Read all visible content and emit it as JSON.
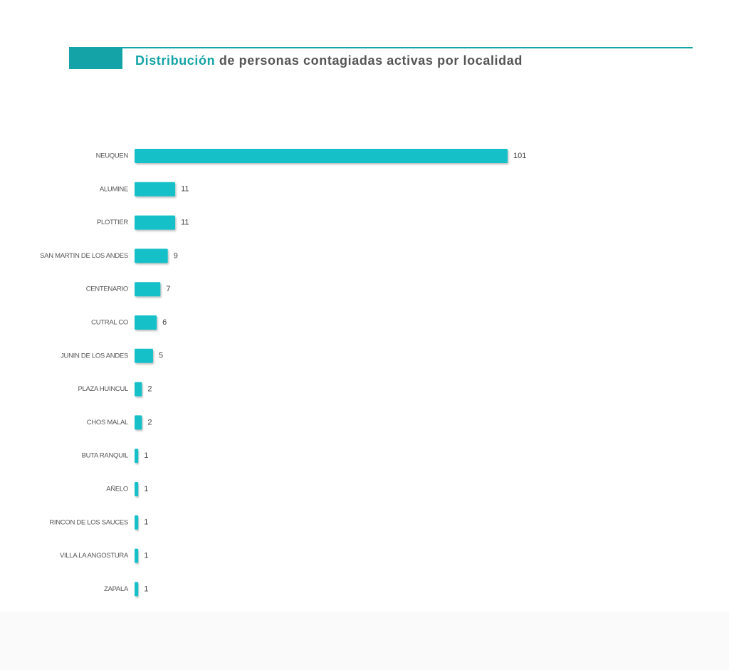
{
  "chart_data": {
    "type": "barh",
    "title": [
      "Distribución",
      "de personas contagiadas activas por localidad"
    ],
    "categories": [
      "NEUQUEN",
      "ALUMINE",
      "PLOTTIER",
      "SAN MARTIN DE LOS ANDES",
      "CENTENARIO",
      "CUTRAL CO",
      "JUNIN DE LOS ANDES",
      "PLAZA HUINCUL",
      "CHOS MALAL",
      "BUTA RANQUIL",
      "AÑELO",
      "RINCON DE LOS SAUCES",
      "VILLA LA ANGOSTURA",
      "ZAPALA"
    ],
    "values": [
      101,
      11,
      11,
      9,
      7,
      6,
      5,
      2,
      2,
      1,
      1,
      1,
      1,
      1
    ],
    "color": "#12c0c8"
  }
}
